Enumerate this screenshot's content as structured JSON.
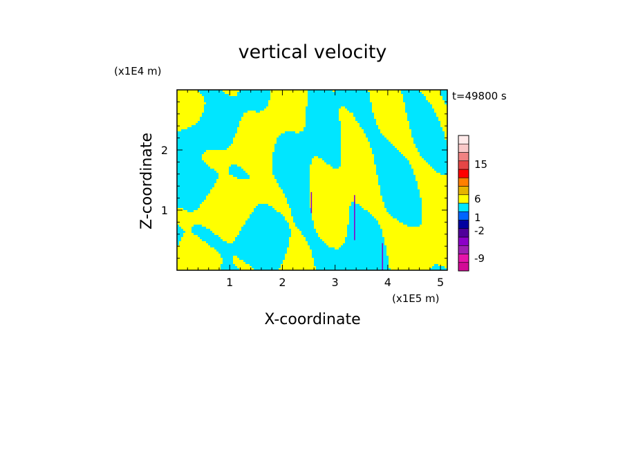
{
  "chart_data": {
    "type": "heatmap",
    "title": "vertical velocity",
    "xlabel": "X-coordinate",
    "ylabel": "Z-coordinate",
    "x_unit": "(x1E5 m)",
    "y_unit": "(x1E4 m)",
    "time_label": "t=49800 s",
    "xlim": [
      0,
      5.13
    ],
    "ylim": [
      0,
      3.0
    ],
    "xticks": [
      "1",
      "2",
      "3",
      "4",
      "5"
    ],
    "yticks": [
      "1",
      "2"
    ],
    "x_tick_values": [
      1,
      2,
      3,
      4,
      5
    ],
    "y_tick_values": [
      1,
      2
    ],
    "dominant_colors": {
      "positive": "#ffff00",
      "negative": "#00e6ff"
    },
    "colorbar": {
      "labels": [
        "15",
        "6",
        "1",
        "-2",
        "-9"
      ],
      "label_values": [
        15,
        6,
        1,
        -2,
        -9
      ],
      "colors": [
        "#d20a96",
        "#e614aa",
        "#a01eb4",
        "#8c00c8",
        "#50009a",
        "#0000a0",
        "#0064ff",
        "#00e6ff",
        "#ffff00",
        "#e6b400",
        "#ff7f00",
        "#ff0000",
        "#e64646",
        "#f08282",
        "#fac8c8",
        "#ffeaea"
      ]
    }
  }
}
